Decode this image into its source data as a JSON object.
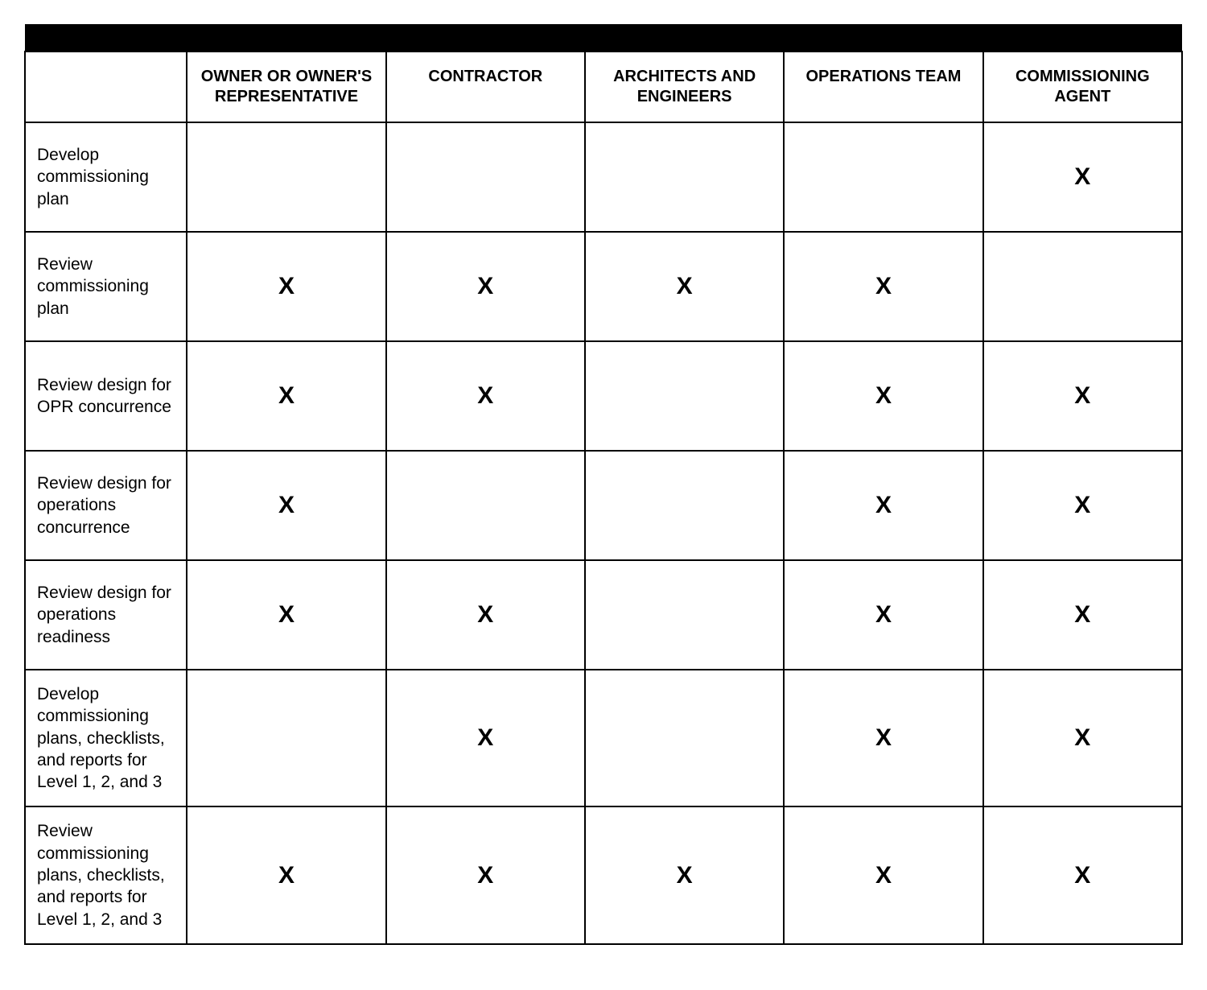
{
  "table": {
    "type": "table",
    "mark_glyph": "X",
    "colors": {
      "header_bar": "#000000",
      "border": "#000000",
      "background": "#ffffff",
      "text": "#000000"
    },
    "typography": {
      "header_fontsize_pt": 15,
      "header_fontweight": 700,
      "rowlabel_fontsize_pt": 16,
      "rowlabel_fontweight": 400,
      "mark_fontsize_pt": 22,
      "mark_fontweight": 700
    },
    "columns": [
      "OWNER OR OWNER'S REPRESENTATIVE",
      "CONTRACTOR",
      "ARCHITECTS AND ENGINEERS",
      "OPERATIONS TEAM",
      "COMMISSIONING AGENT"
    ],
    "rows": [
      {
        "label": "Develop commissioning plan",
        "marks": [
          false,
          false,
          false,
          false,
          true
        ]
      },
      {
        "label": "Review commissioning plan",
        "marks": [
          true,
          true,
          true,
          true,
          false
        ]
      },
      {
        "label": "Review design for OPR concurrence",
        "marks": [
          true,
          true,
          false,
          true,
          true
        ]
      },
      {
        "label": "Review design for operations concurrence",
        "marks": [
          true,
          false,
          false,
          true,
          true
        ]
      },
      {
        "label": "Review design for operations readiness",
        "marks": [
          true,
          true,
          false,
          true,
          true
        ]
      },
      {
        "label": "Develop commissioning plans, checklists, and reports for Level 1, 2, and 3",
        "marks": [
          false,
          true,
          false,
          true,
          true
        ]
      },
      {
        "label": "Review commissioning plans, checklists, and reports for Level 1, 2, and 3",
        "marks": [
          true,
          true,
          true,
          true,
          true
        ]
      }
    ]
  }
}
